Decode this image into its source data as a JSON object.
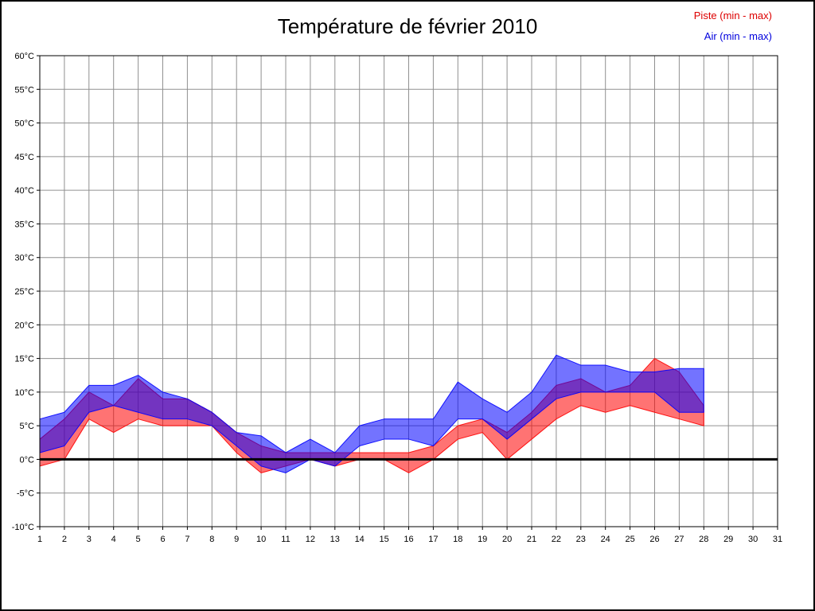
{
  "title": "Température de février 2010",
  "legend": {
    "items": [
      {
        "id": "piste",
        "label": "Piste (min - max)",
        "color": "#dd0000"
      },
      {
        "id": "air",
        "label": "Air (min - max)",
        "color": "#0000dd"
      }
    ]
  },
  "chart_data": {
    "type": "area",
    "title": "Température de février 2010",
    "xlabel": "",
    "ylabel": "",
    "xlim": [
      1,
      31
    ],
    "ylim": [
      -10,
      60
    ],
    "grid": true,
    "grid_color": "#909090",
    "legend_position": "top-right",
    "x_tick_values": [
      1,
      2,
      3,
      4,
      5,
      6,
      7,
      8,
      9,
      10,
      11,
      12,
      13,
      14,
      15,
      16,
      17,
      18,
      19,
      20,
      21,
      22,
      23,
      24,
      25,
      26,
      27,
      28,
      29,
      30,
      31
    ],
    "x_tick_labels": [
      "1",
      "2",
      "3",
      "4",
      "5",
      "6",
      "7",
      "8",
      "9",
      "10",
      "11",
      "12",
      "13",
      "14",
      "15",
      "16",
      "17",
      "18",
      "19",
      "20",
      "21",
      "22",
      "23",
      "24",
      "25",
      "26",
      "27",
      "28",
      "29",
      "30",
      "31"
    ],
    "y_tick_values": [
      60,
      55,
      50,
      45,
      40,
      35,
      30,
      25,
      20,
      15,
      10,
      5,
      0,
      -5,
      -10
    ],
    "y_tick_labels": [
      "60°C",
      "55°C",
      "50°C",
      "45°C",
      "40°C",
      "35°C",
      "30°C",
      "25°C",
      "20°C",
      "15°C",
      "10°C",
      "5°C",
      "0°C",
      "-5°C",
      "-10°C"
    ],
    "x": [
      1,
      2,
      3,
      4,
      5,
      6,
      7,
      8,
      9,
      10,
      11,
      12,
      13,
      14,
      15,
      16,
      17,
      18,
      19,
      20,
      21,
      22,
      23,
      24,
      25,
      26,
      27,
      28
    ],
    "series": [
      {
        "id": "piste",
        "name": "Piste (min - max)",
        "color": "#ff0000",
        "opacity": 0.55,
        "min": [
          -1,
          0,
          6,
          4,
          6,
          5,
          5,
          5,
          1,
          -2,
          -1,
          0,
          -1,
          0,
          0,
          -2,
          0,
          3,
          4,
          0,
          3,
          6,
          8,
          7,
          8,
          7,
          6,
          5
        ],
        "max": [
          3,
          6,
          10,
          8,
          12,
          9,
          9,
          7,
          4,
          2,
          1,
          1,
          1,
          1,
          1,
          1,
          2,
          5,
          6,
          4,
          7,
          11,
          12,
          10,
          11,
          15,
          13,
          8
        ]
      },
      {
        "id": "air",
        "name": "Air (min - max)",
        "color": "#0000ff",
        "opacity": 0.55,
        "min": [
          1,
          2,
          7,
          8,
          7,
          6,
          6,
          5,
          2,
          -1,
          -2,
          0,
          -1,
          2,
          3,
          3,
          2,
          6,
          6,
          3,
          6,
          9,
          10,
          10,
          10,
          10,
          7,
          7
        ],
        "max": [
          6,
          7,
          11,
          11,
          12.5,
          10,
          9,
          7,
          4,
          3.5,
          1,
          3,
          1,
          5,
          6,
          6,
          6,
          11.5,
          9,
          7,
          10,
          15.5,
          14,
          14,
          13,
          13,
          13.5,
          13.5
        ]
      }
    ],
    "zero_line": {
      "value": 0,
      "color": "#000000",
      "width": 3
    }
  }
}
